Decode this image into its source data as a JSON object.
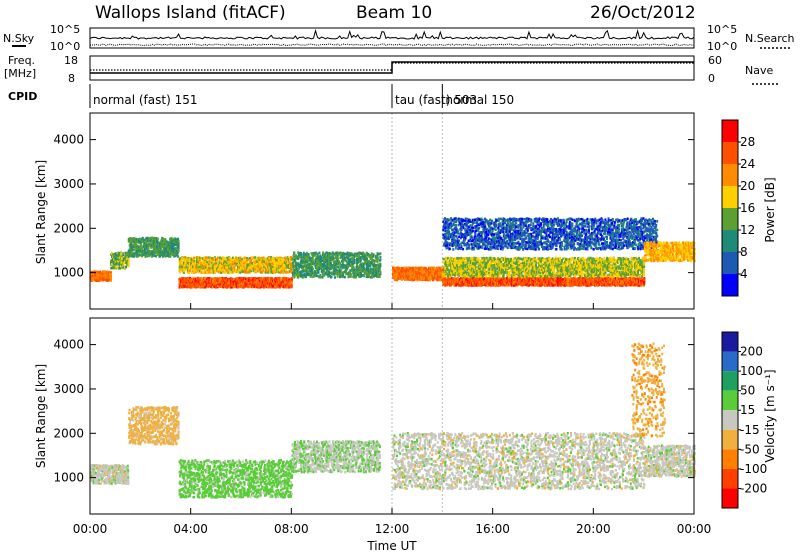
{
  "header": {
    "station": "Wallops Island (fitACF)",
    "beam": "Beam 10",
    "date": "26/Oct/2012"
  },
  "top_panels": {
    "left_labels": {
      "nsky": "N.Sky",
      "freq": "Freq.",
      "freq_unit": "[MHz]",
      "cpid": "CPID"
    },
    "right_labels": {
      "nsearch": "N.Search",
      "nave": "Nave"
    },
    "noise_ticks_left": [
      "10^5",
      "10^0"
    ],
    "noise_ticks_right": [
      "10^5",
      "10^0"
    ],
    "freq_ticks": [
      "18",
      "8"
    ],
    "nave_ticks": [
      "60",
      "0"
    ],
    "cpid_segments": [
      {
        "label": "normal (fast) 151",
        "start_hr": 0.0,
        "end_hr": 12.0
      },
      {
        "label": "tau (fast) 503",
        "start_hr": 12.0,
        "end_hr": 14.0
      },
      {
        "label": "normal 150",
        "start_hr": 14.0,
        "end_hr": 24.0
      }
    ]
  },
  "power_panel": {
    "ylabel": "Slant Range [km]",
    "cb_label": "Power [dB]",
    "cb_ticks": [
      "28",
      "24",
      "20",
      "16",
      "12",
      "8",
      "4"
    ],
    "cb_colors": [
      "#ff0000",
      "#ff5000",
      "#ff8c00",
      "#ffd000",
      "#5aa032",
      "#208a78",
      "#1e5ab4",
      "#0000ff"
    ]
  },
  "velocity_panel": {
    "ylabel": "Slant Range [km]",
    "cb_label": "Velocity [m s⁻¹]",
    "cb_ticks": [
      "200",
      "100",
      "50",
      "15",
      "-15",
      "-50",
      "-100",
      "-200"
    ],
    "cb_colors": [
      "#1a1aa0",
      "#2a6ac8",
      "#20a060",
      "#5acc3a",
      "#c8c8c0",
      "#f0b040",
      "#ff8000",
      "#ff4000",
      "#ff0000"
    ]
  },
  "x_axis": {
    "label": "Time UT",
    "ticks": [
      "00:00",
      "04:00",
      "08:00",
      "12:00",
      "16:00",
      "20:00",
      "00:00"
    ]
  },
  "y_ticks": [
    "4000",
    "3000",
    "2000",
    "1000"
  ],
  "chart_data": {
    "type": "heatmap",
    "title": "Wallops Island (fitACF)",
    "xlabel": "Time UT",
    "ylabel": "Slant Range [km]",
    "xlim_hours": [
      0,
      24
    ],
    "ylim_km": [
      180,
      4600
    ],
    "panels": [
      {
        "name": "Power",
        "units": "dB",
        "colorbar_range": [
          0,
          32
        ],
        "bands": [
          {
            "start_hr": 0.0,
            "end_hr": 0.8,
            "center_km": 950,
            "width_km": 150,
            "value": 24
          },
          {
            "start_hr": 0.8,
            "end_hr": 1.5,
            "center_km": 1300,
            "width_km": 250,
            "value": 14
          },
          {
            "start_hr": 1.5,
            "end_hr": 3.5,
            "center_km": 1600,
            "width_km": 300,
            "value": 12
          },
          {
            "start_hr": 3.5,
            "end_hr": 8.0,
            "center_km": 800,
            "width_km": 150,
            "value": 26
          },
          {
            "start_hr": 3.5,
            "end_hr": 8.0,
            "center_km": 1200,
            "width_km": 250,
            "value": 18
          },
          {
            "start_hr": 8.0,
            "end_hr": 11.5,
            "center_km": 1200,
            "width_km": 400,
            "value": 12
          },
          {
            "start_hr": 12.0,
            "end_hr": 14.0,
            "center_km": 1000,
            "width_km": 200,
            "value": 24
          },
          {
            "start_hr": 14.0,
            "end_hr": 22.0,
            "center_km": 820,
            "width_km": 120,
            "value": 26
          },
          {
            "start_hr": 14.0,
            "end_hr": 22.0,
            "center_km": 1150,
            "width_km": 300,
            "value": 16
          },
          {
            "start_hr": 14.0,
            "end_hr": 22.5,
            "center_km": 1900,
            "width_km": 500,
            "value": 6
          },
          {
            "start_hr": 22.0,
            "end_hr": 24.0,
            "center_km": 1500,
            "width_km": 300,
            "value": 20
          }
        ]
      },
      {
        "name": "Velocity",
        "units": "m s⁻¹",
        "colorbar_range": [
          -200,
          200
        ],
        "bands": [
          {
            "start_hr": 0.0,
            "end_hr": 1.5,
            "center_km": 1100,
            "width_km": 300,
            "value": 0
          },
          {
            "start_hr": 1.5,
            "end_hr": 3.5,
            "center_km": 2200,
            "width_km": 600,
            "value": -30
          },
          {
            "start_hr": 3.5,
            "end_hr": 8.0,
            "center_km": 1000,
            "width_km": 600,
            "value": 30
          },
          {
            "start_hr": 8.0,
            "end_hr": 11.5,
            "center_km": 1500,
            "width_km": 500,
            "value": 10
          },
          {
            "start_hr": 12.0,
            "end_hr": 22.0,
            "center_km": 1400,
            "width_km": 900,
            "value": 0
          },
          {
            "start_hr": 22.0,
            "end_hr": 24.0,
            "center_km": 1400,
            "width_km": 500,
            "value": 0
          },
          {
            "start_hr": 21.5,
            "end_hr": 22.8,
            "center_km": 3000,
            "width_km": 1500,
            "value": -40
          }
        ]
      }
    ]
  }
}
